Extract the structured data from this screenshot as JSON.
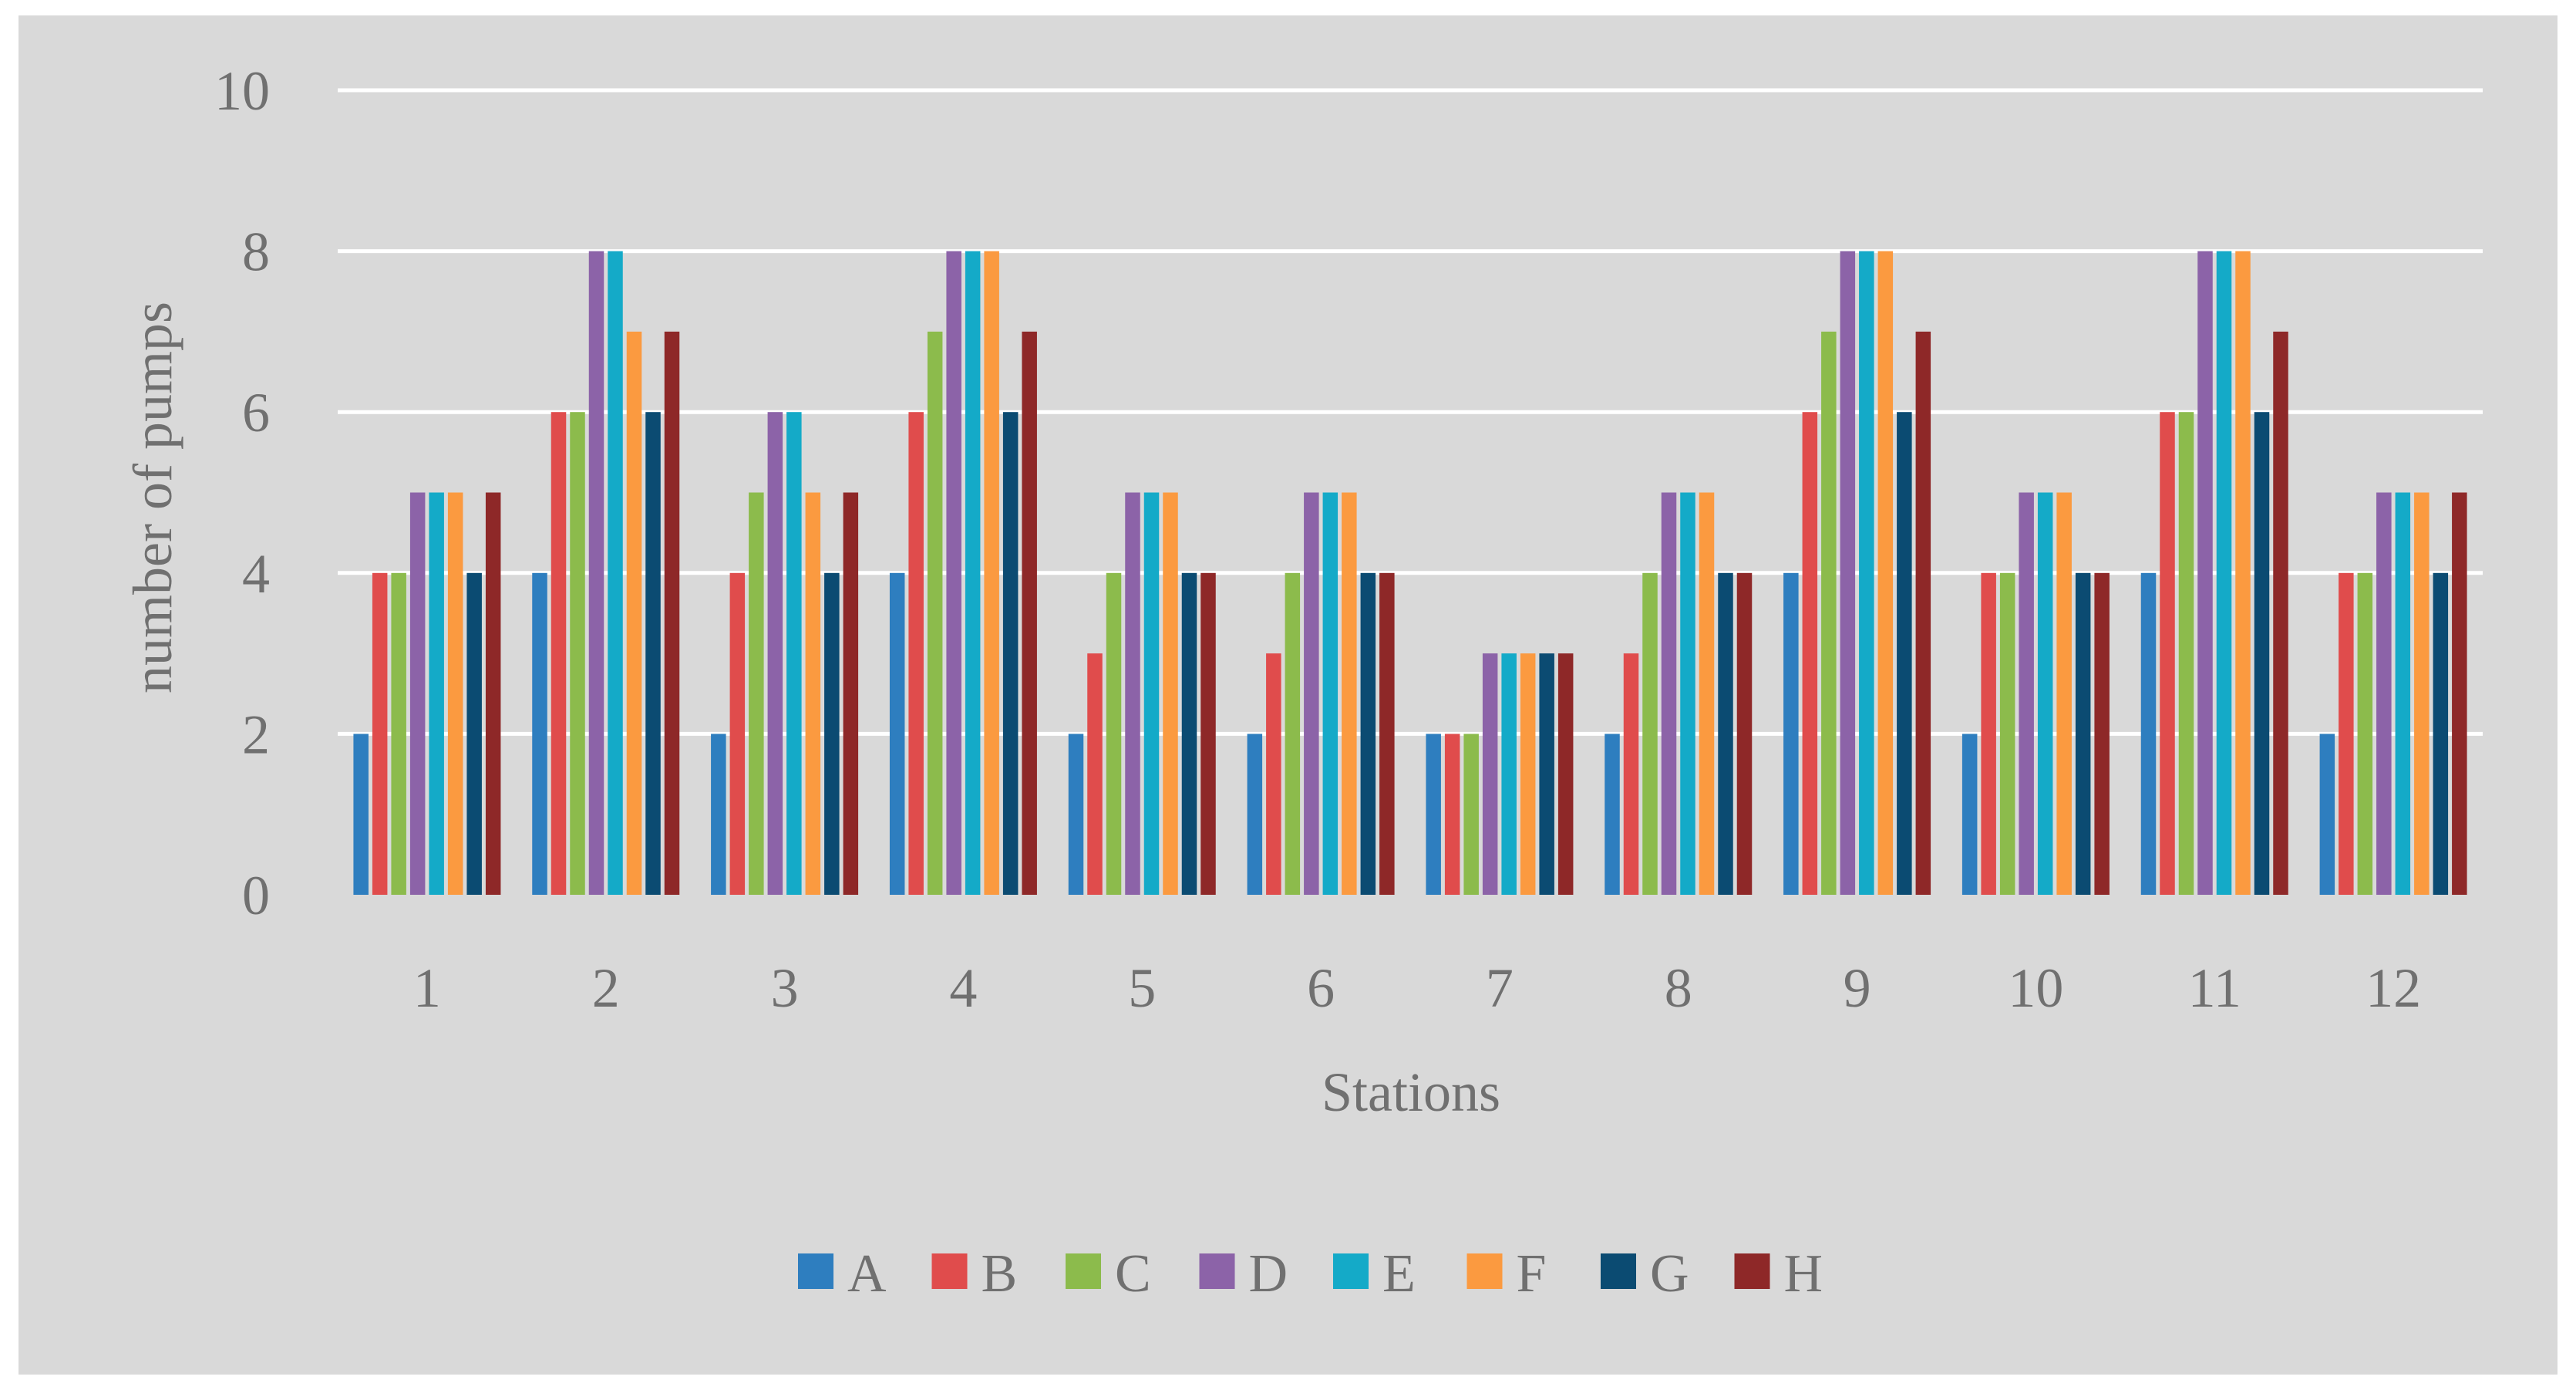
{
  "chart_data": {
    "type": "bar",
    "title": "",
    "xlabel": "Stations",
    "ylabel": "number of pumps",
    "ylim": [
      0,
      10
    ],
    "yticks": [
      0,
      2,
      4,
      6,
      8,
      10
    ],
    "grid": true,
    "legend_position": "bottom",
    "categories": [
      "1",
      "2",
      "3",
      "4",
      "5",
      "6",
      "7",
      "8",
      "9",
      "10",
      "11",
      "12"
    ],
    "series": [
      {
        "name": "A",
        "color": "#2e7ebf",
        "values": [
          2,
          4,
          2,
          4,
          2,
          2,
          2,
          2,
          4,
          2,
          4,
          2
        ]
      },
      {
        "name": "B",
        "color": "#e04c4c",
        "values": [
          4,
          6,
          4,
          6,
          3,
          3,
          2,
          3,
          6,
          4,
          6,
          4
        ]
      },
      {
        "name": "C",
        "color": "#8cbb4c",
        "values": [
          4,
          6,
          5,
          7,
          4,
          4,
          2,
          4,
          7,
          4,
          6,
          4
        ]
      },
      {
        "name": "D",
        "color": "#8c63a8",
        "values": [
          5,
          8,
          6,
          8,
          5,
          5,
          3,
          5,
          8,
          5,
          8,
          5
        ]
      },
      {
        "name": "E",
        "color": "#14aac8",
        "values": [
          5,
          8,
          6,
          8,
          5,
          5,
          3,
          5,
          8,
          5,
          8,
          5
        ]
      },
      {
        "name": "F",
        "color": "#fb9a40",
        "values": [
          5,
          7,
          5,
          8,
          5,
          5,
          3,
          5,
          8,
          5,
          8,
          5
        ]
      },
      {
        "name": "G",
        "color": "#0b4b72",
        "values": [
          4,
          6,
          4,
          6,
          4,
          4,
          3,
          4,
          6,
          4,
          6,
          4
        ]
      },
      {
        "name": "H",
        "color": "#8e2828",
        "values": [
          5,
          7,
          5,
          7,
          4,
          4,
          3,
          4,
          7,
          4,
          7,
          5
        ]
      }
    ]
  }
}
